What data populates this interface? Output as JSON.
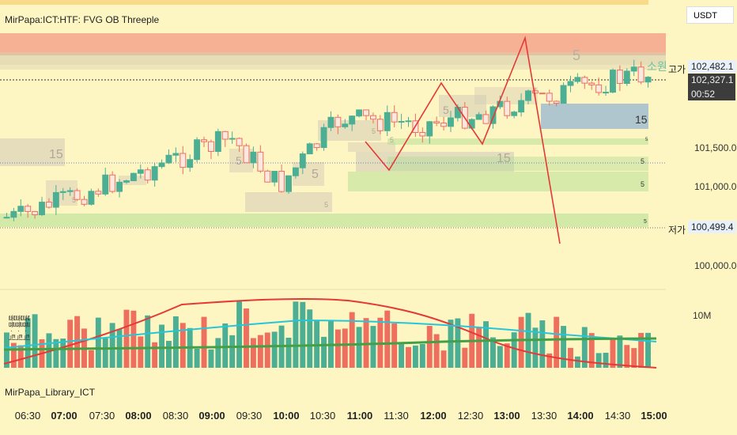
{
  "indicator_title": "MirPapa:ICT:HTF: FVG OB Threeple",
  "currency": "USDT",
  "lower_pane_title": "MirPapa_Library_ICT",
  "volume_label": "10M",
  "side_labels": [
    "볼륨 · 틱",
    "볼륨 · 틱",
    "볼륨 · 틱"
  ],
  "high_label": "고가",
  "low_label": "저가",
  "kr_overlay_text": "소원",
  "price_last": "102,327.1",
  "countdown": "00:52",
  "high_value": "102,482.1",
  "low_value": "100,499.4",
  "box_labels": {
    "tf15": "15",
    "tf5": "5"
  },
  "chart_data": {
    "type": "candlestick",
    "x_ticks": [
      "06:30",
      "07:00",
      "07:30",
      "08:00",
      "08:30",
      "09:00",
      "09:30",
      "10:00",
      "10:30",
      "11:00",
      "11:30",
      "12:00",
      "12:30",
      "13:00",
      "13:30",
      "14:00",
      "14:30",
      "15:00"
    ],
    "x_ticks_bold": [
      "07:00",
      "08:00",
      "09:00",
      "10:00",
      "11:00",
      "12:00",
      "13:00",
      "14:00",
      "15:00"
    ],
    "y_ticks": [
      "101,500.0",
      "101,000.0",
      "100,000.0"
    ],
    "ylim": [
      99800,
      103200
    ],
    "colors": {
      "up": "#4caf94",
      "down": "#ef6f5e",
      "ma_red": "#e53935",
      "ma_cyan": "#26c6da",
      "ma_green": "#43a047",
      "zigzag": "#e53935"
    }
  }
}
